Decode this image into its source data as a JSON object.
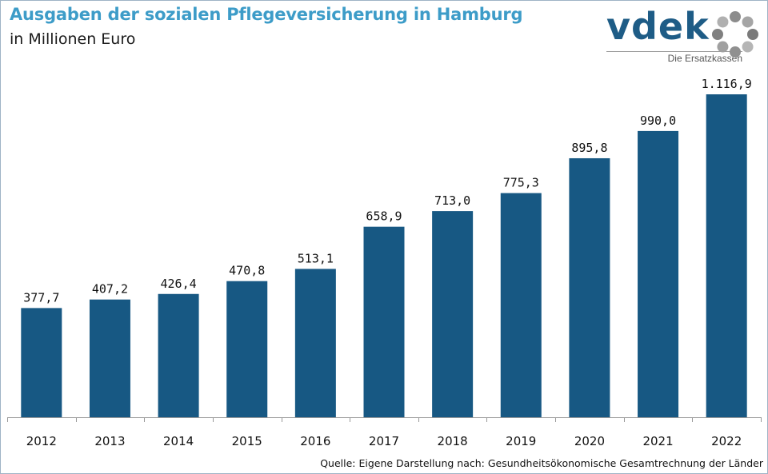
{
  "header": {
    "title": "Ausgaben der sozialen Pflegeversicherung in Hamburg",
    "subtitle": "in Millionen Euro"
  },
  "logo": {
    "wordmark": "vdek",
    "tagline": "Die Ersatzkassen",
    "ring_icon": "vdek-ring-icon"
  },
  "footer": {
    "source": "Quelle: Eigene Darstellung nach: Gesundheitsökonomische Gesamtrechnung der Länder"
  },
  "colors": {
    "bar": "#175883",
    "title": "#3d9cc8",
    "logo": "#1e5c86",
    "axis": "#9a9a9a"
  },
  "chart_data": {
    "type": "bar",
    "title": "Ausgaben der sozialen Pflegeversicherung in Hamburg",
    "subtitle": "in Millionen Euro",
    "categories": [
      "2012",
      "2013",
      "2014",
      "2015",
      "2016",
      "2017",
      "2018",
      "2019",
      "2020",
      "2021",
      "2022"
    ],
    "values": [
      377.7,
      407.2,
      426.4,
      470.8,
      513.1,
      658.9,
      713.0,
      775.3,
      895.8,
      990.0,
      1116.9
    ],
    "value_labels": [
      "377,7",
      "407,2",
      "426,4",
      "470,8",
      "513,1",
      "658,9",
      "713,0",
      "775,3",
      "895,8",
      "990,0",
      "1.116,9"
    ],
    "ylim": [
      0,
      1116.9
    ],
    "grid": false,
    "legend": "none"
  }
}
